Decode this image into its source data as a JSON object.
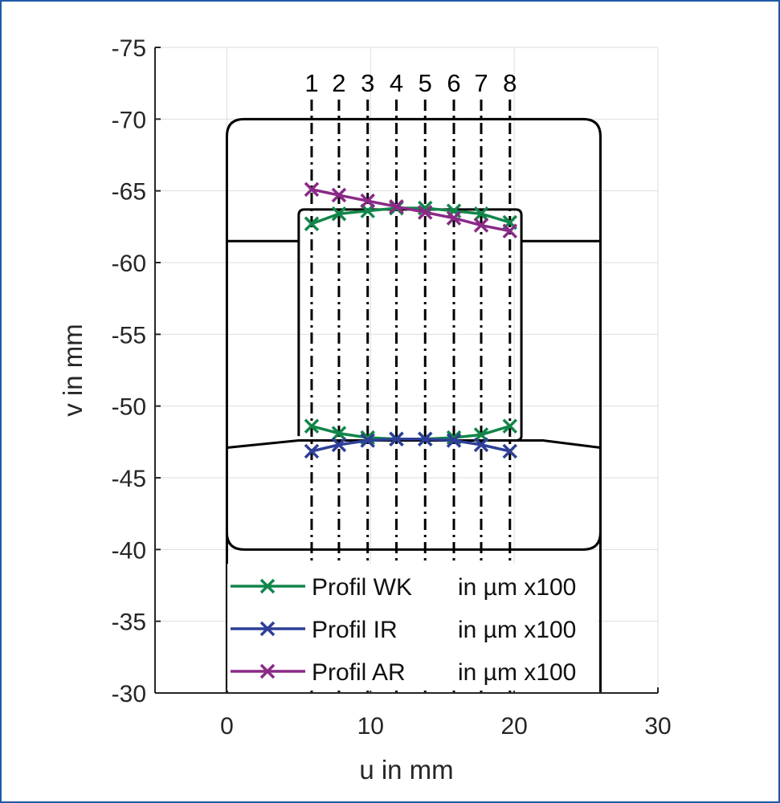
{
  "chart_data": {
    "type": "line",
    "xlabel": "u in mm",
    "ylabel": "v in mm",
    "xlim": [
      -5,
      30
    ],
    "ylim": [
      -75,
      -30
    ],
    "y_reversed": true,
    "xticks": [
      "0",
      "10",
      "20",
      "30"
    ],
    "xtick_values": [
      0,
      10,
      20,
      30
    ],
    "yticks": [
      "-75",
      "-70",
      "-65",
      "-60",
      "-55",
      "-50",
      "-45",
      "-40",
      "-35",
      "-30"
    ],
    "ytick_values": [
      -75,
      -70,
      -65,
      -60,
      -55,
      -50,
      -45,
      -40,
      -35,
      -30
    ],
    "grid": true,
    "legend_position": "bottom-center",
    "section_labels": [
      "1",
      "2",
      "3",
      "4",
      "5",
      "6",
      "7",
      "8"
    ],
    "section_u": [
      5.9,
      7.8,
      9.8,
      11.8,
      13.8,
      15.8,
      17.7,
      19.7
    ],
    "series": [
      {
        "name": "Profil WK in µm x100",
        "color": "#12864a",
        "label_parts": [
          "Profil WK",
          "in µm x100"
        ],
        "x": [
          5.9,
          7.8,
          9.8,
          11.8,
          13.8,
          15.8,
          17.7,
          19.7
        ],
        "y": [
          -62.7,
          -63.4,
          -63.6,
          -63.8,
          -63.8,
          -63.6,
          -63.4,
          -62.8
        ]
      },
      {
        "name": "Profil WK (bottom)",
        "color": "#12864a",
        "x": [
          5.9,
          7.8,
          9.8,
          11.8,
          13.8,
          15.8,
          17.7,
          19.7
        ],
        "y": [
          -48.6,
          -48.1,
          -47.8,
          -47.7,
          -47.7,
          -47.8,
          -48.0,
          -48.6
        ]
      },
      {
        "name": "Profil IR in µm x100",
        "color": "#2e3f97",
        "label_parts": [
          "Profil IR",
          "in µm x100"
        ],
        "x": [
          5.9,
          7.8,
          9.8,
          11.8,
          13.8,
          15.8,
          17.7,
          19.7
        ],
        "y": [
          -46.85,
          -47.3,
          -47.6,
          -47.7,
          -47.7,
          -47.6,
          -47.3,
          -46.85
        ]
      },
      {
        "name": "Profil AR in µm x100",
        "color": "#8a2a87",
        "label_parts": [
          "Profil AR",
          "in µm x100"
        ],
        "x": [
          5.9,
          7.8,
          9.8,
          11.8,
          13.8,
          15.8,
          17.7,
          19.7
        ],
        "y": [
          -65.1,
          -64.7,
          -64.3,
          -63.9,
          -63.5,
          -63.1,
          -62.6,
          -62.2
        ]
      }
    ]
  }
}
